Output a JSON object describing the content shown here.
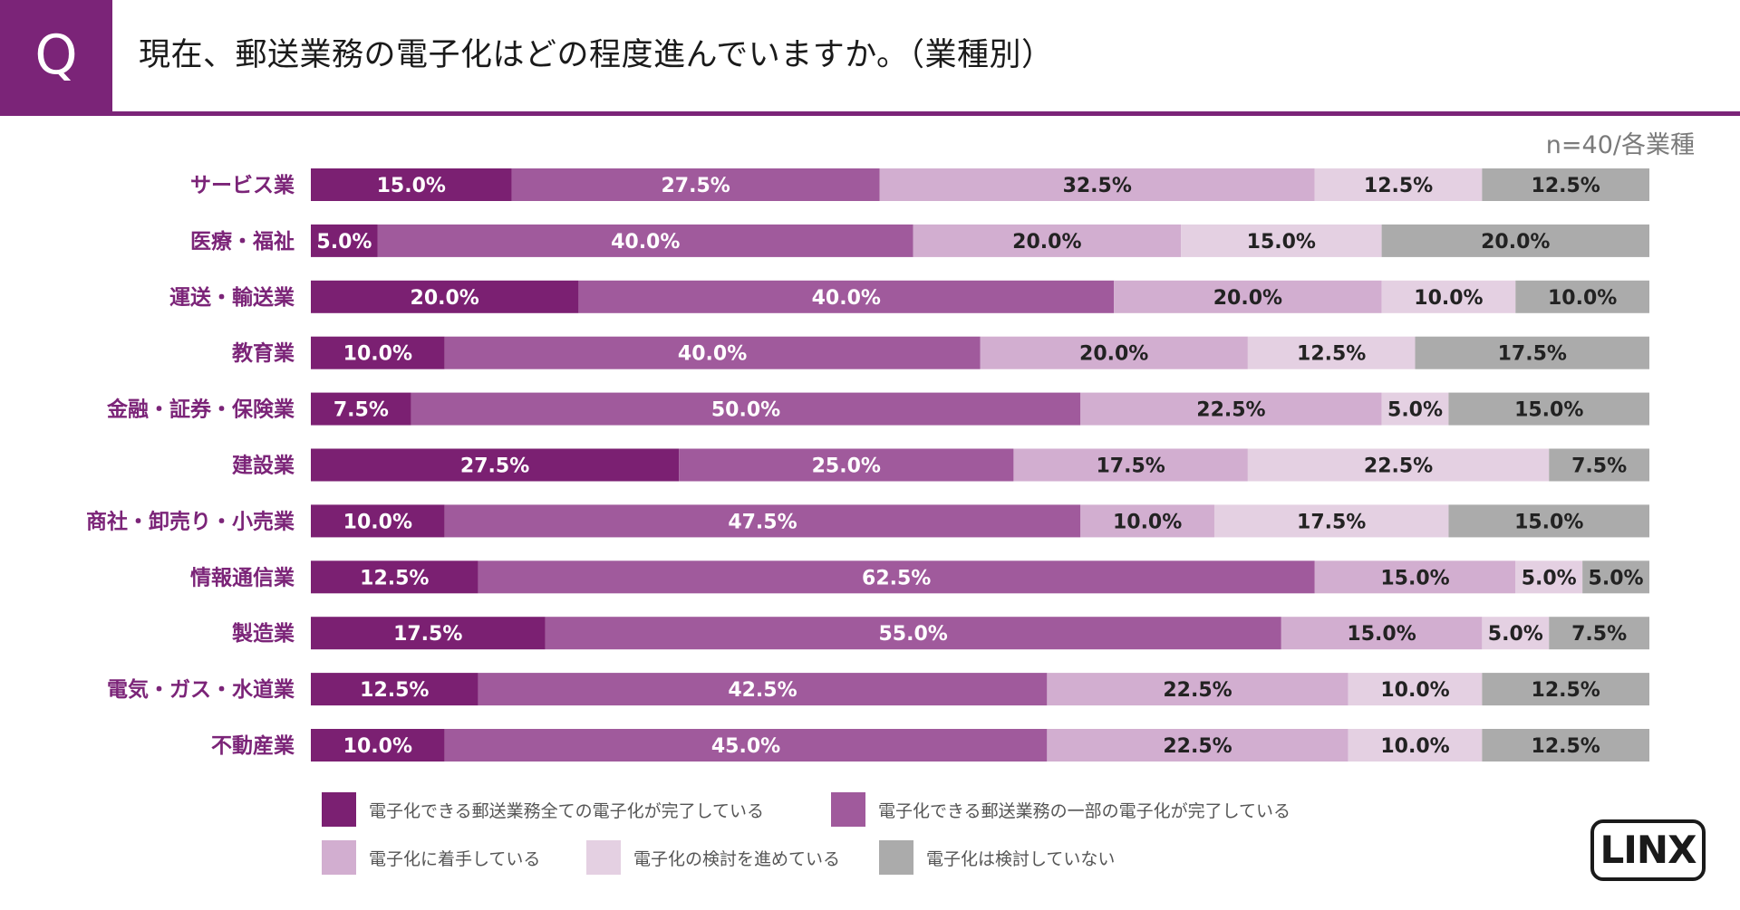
{
  "header": {
    "q_label": "Q",
    "title": "現在、郵送業務の電子化はどの程度進んでいますか。（業種別）",
    "accent_color": "#7b2478"
  },
  "sample_note": "n=40/各業種",
  "logo": {
    "text": "LINX"
  },
  "chart_data": {
    "type": "bar",
    "orientation": "horizontal-stacked-100",
    "title": "現在、郵送業務の電子化はどの程度進んでいますか。（業種別）",
    "xlabel": "",
    "ylabel": "",
    "xlim": [
      0,
      100
    ],
    "value_suffix": "%",
    "categories": [
      "サービス業",
      "医療・福祉",
      "運送・輸送業",
      "教育業",
      "金融・証券・保険業",
      "建設業",
      "商社・卸売り・小売業",
      "情報通信業",
      "製造業",
      "電気・ガス・水道業",
      "不動産業"
    ],
    "series": [
      {
        "name": "電子化できる郵送業務全ての電子化が完了している",
        "color": "#7b2072",
        "text_color": "#ffffff",
        "values": [
          15.0,
          5.0,
          20.0,
          10.0,
          7.5,
          27.5,
          10.0,
          12.5,
          17.5,
          12.5,
          10.0
        ]
      },
      {
        "name": "電子化できる郵送業務の一部の電子化が完了している",
        "color": "#a05a9c",
        "text_color": "#ffffff",
        "values": [
          27.5,
          40.0,
          40.0,
          40.0,
          50.0,
          25.0,
          47.5,
          62.5,
          55.0,
          42.5,
          45.0
        ]
      },
      {
        "name": "電子化に着手している",
        "color": "#d2aed0",
        "text_color": "#222222",
        "values": [
          32.5,
          20.0,
          20.0,
          20.0,
          22.5,
          17.5,
          10.0,
          15.0,
          15.0,
          22.5,
          22.5
        ]
      },
      {
        "name": "電子化の検討を進めている",
        "color": "#e4d0e2",
        "text_color": "#222222",
        "values": [
          12.5,
          15.0,
          10.0,
          12.5,
          5.0,
          22.5,
          17.5,
          5.0,
          5.0,
          10.0,
          10.0
        ]
      },
      {
        "name": "電子化は検討していない",
        "color": "#ababab",
        "text_color": "#222222",
        "values": [
          12.5,
          20.0,
          10.0,
          17.5,
          15.0,
          7.5,
          15.0,
          5.0,
          7.5,
          12.5,
          12.5
        ]
      }
    ],
    "legend_position": "bottom"
  }
}
